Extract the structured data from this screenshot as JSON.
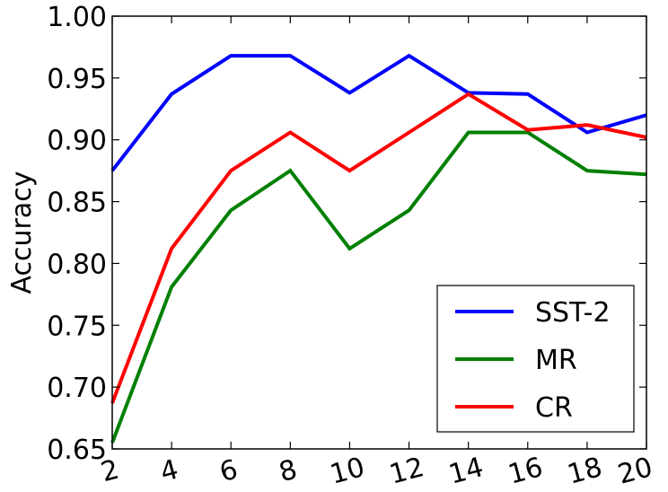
{
  "chart_data": {
    "type": "line",
    "title": "",
    "xlabel": "",
    "ylabel": "Accuracy",
    "x": [
      2,
      4,
      6,
      8,
      10,
      12,
      14,
      16,
      18,
      20
    ],
    "xlim": [
      2,
      20
    ],
    "ylim": [
      0.65,
      1.0
    ],
    "xticks": [
      "2",
      "4",
      "6",
      "8",
      "10",
      "12",
      "14",
      "16",
      "18",
      "20"
    ],
    "yticks": [
      "0.65",
      "0.70",
      "0.75",
      "0.80",
      "0.85",
      "0.90",
      "0.95",
      "1.00"
    ],
    "grid": false,
    "legend_position": "lower-right",
    "series": [
      {
        "name": "SST-2",
        "color": "#0000ff",
        "values": [
          0.875,
          0.937,
          0.968,
          0.968,
          0.938,
          0.968,
          0.938,
          0.937,
          0.906,
          0.92
        ]
      },
      {
        "name": "MR",
        "color": "#008000",
        "values": [
          0.655,
          0.781,
          0.843,
          0.875,
          0.812,
          0.843,
          0.906,
          0.906,
          0.875,
          0.872
        ]
      },
      {
        "name": "CR",
        "color": "#ff0000",
        "values": [
          0.687,
          0.812,
          0.875,
          0.906,
          0.875,
          0.906,
          0.937,
          0.908,
          0.912,
          0.902
        ]
      }
    ]
  }
}
